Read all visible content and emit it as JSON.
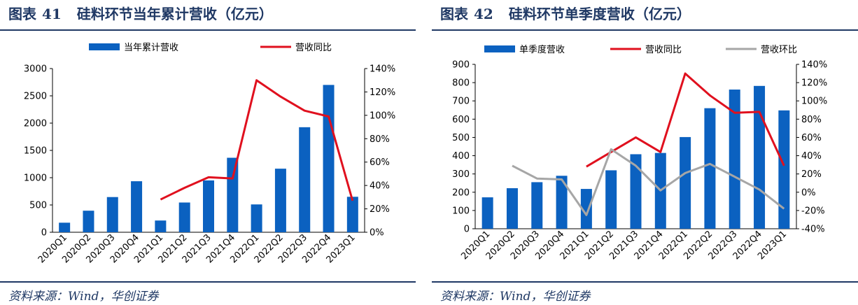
{
  "chart_data": [
    {
      "type": "bar",
      "label": "图表",
      "number": "41",
      "title": "硅料环节当年累计营收（亿元）",
      "source": "资料来源：Wind，华创证券",
      "categories": [
        "2020Q1",
        "2020Q2",
        "2020Q3",
        "2020Q4",
        "2021Q1",
        "2021Q2",
        "2021Q3",
        "2021Q4",
        "2022Q1",
        "2022Q2",
        "2022Q3",
        "2022Q4",
        "2023Q1"
      ],
      "left_axis": {
        "ylim": [
          0,
          3000
        ],
        "ticks": [
          "0",
          "500",
          "1000",
          "1500",
          "2000",
          "2500",
          "3000"
        ]
      },
      "right_axis": {
        "ylim": [
          0,
          140
        ],
        "unit": "%",
        "ticks": [
          "0%",
          "20%",
          "40%",
          "60%",
          "80%",
          "100%",
          "120%",
          "140%"
        ]
      },
      "series": [
        {
          "name": "当年累计营收",
          "type": "bar",
          "axis": "left",
          "color": "#0b61c0",
          "values": [
            175,
            395,
            645,
            935,
            215,
            545,
            950,
            1365,
            510,
            1165,
            1925,
            2700,
            650
          ]
        },
        {
          "name": "营收同比",
          "type": "line",
          "axis": "right",
          "color": "#e0101e",
          "values": [
            null,
            null,
            null,
            null,
            28,
            38,
            47,
            46,
            130,
            116,
            104,
            99,
            27
          ]
        }
      ],
      "legend_placement": "top"
    },
    {
      "type": "bar",
      "label": "图表",
      "number": "42",
      "title": "硅料环节单季度营收（亿元）",
      "source": "资料来源：Wind，华创证券",
      "categories": [
        "2020Q1",
        "2020Q2",
        "2020Q3",
        "2020Q4",
        "2021Q1",
        "2021Q2",
        "2021Q3",
        "2021Q4",
        "2022Q1",
        "2022Q2",
        "2022Q3",
        "2022Q4",
        "2023Q1"
      ],
      "left_axis": {
        "ylim": [
          0,
          900
        ],
        "ticks": [
          "0",
          "100",
          "200",
          "300",
          "400",
          "500",
          "600",
          "700",
          "800",
          "900"
        ]
      },
      "right_axis": {
        "ylim": [
          -40,
          140
        ],
        "unit": "%",
        "ticks": [
          "-40%",
          "-20%",
          "0%",
          "20%",
          "40%",
          "60%",
          "80%",
          "100%",
          "120%",
          "140%"
        ]
      },
      "series": [
        {
          "name": "单季度营收",
          "type": "bar",
          "axis": "left",
          "color": "#0b61c0",
          "values": [
            172,
            222,
            255,
            290,
            218,
            320,
            408,
            415,
            502,
            660,
            762,
            782,
            648
          ]
        },
        {
          "name": "营收同比",
          "type": "line",
          "axis": "right",
          "color": "#e0101e",
          "values": [
            null,
            null,
            null,
            null,
            28,
            44,
            60,
            44,
            130,
            106,
            87,
            88,
            29
          ]
        },
        {
          "name": "营收环比",
          "type": "line",
          "axis": "right",
          "color": "#a6a6a6",
          "values": [
            null,
            29,
            15,
            14,
            -25,
            47,
            29,
            2,
            21,
            31,
            17,
            3,
            -18
          ]
        }
      ],
      "legend_placement": "top"
    }
  ]
}
